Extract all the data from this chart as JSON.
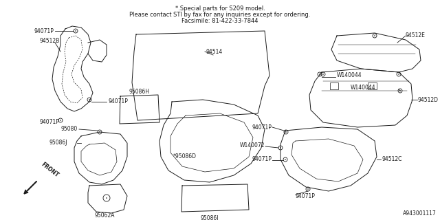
{
  "background_color": "#ffffff",
  "line_color": "#1a1a1a",
  "text_color": "#1a1a1a",
  "special_note_line1": "*.Special parts for S209 model.",
  "special_note_line2": "Please contact STI by fax for any inquiries except for ordering.",
  "special_note_line3": "Facsimile: 81-422-33-7844",
  "diagram_id": "A943001117",
  "figsize": [
    6.4,
    3.2
  ],
  "dpi": 100
}
